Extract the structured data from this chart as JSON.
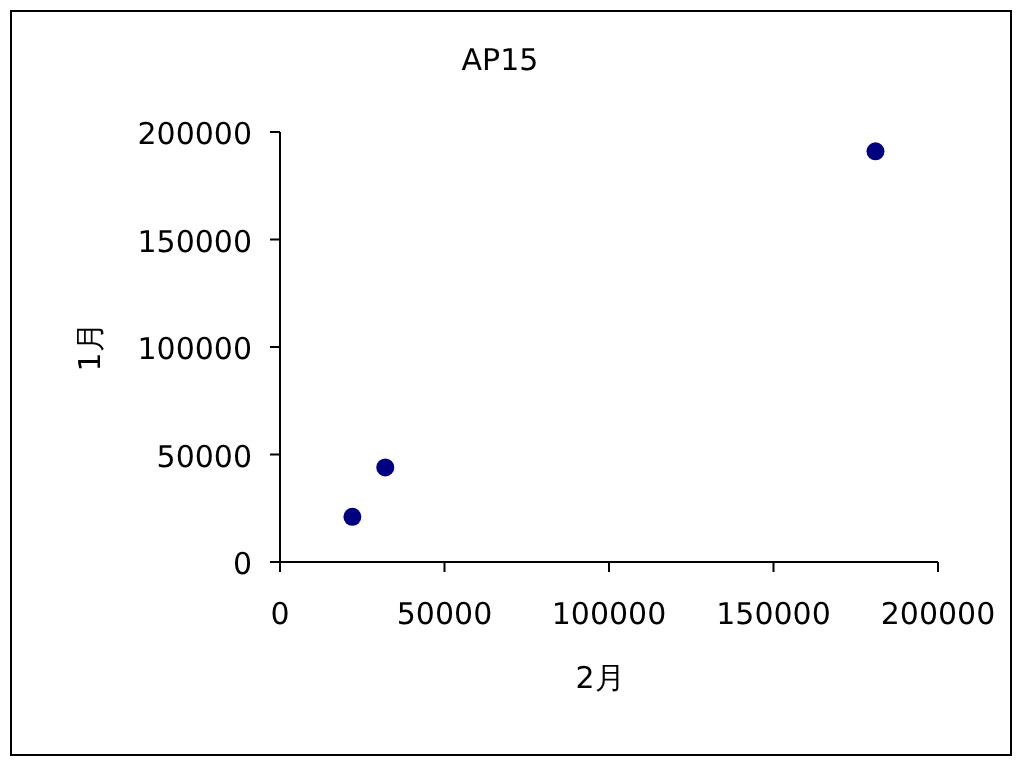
{
  "chart_data": {
    "type": "scatter",
    "title": "AP15",
    "xlabel": "2月",
    "ylabel": "1月",
    "x": [
      22000,
      32000,
      181000
    ],
    "series": [
      {
        "color": "#000080",
        "values": [
          21000,
          44000,
          191000
        ]
      }
    ],
    "xlim": [
      0,
      200000
    ],
    "xticks": [
      0,
      50000,
      100000,
      150000,
      200000
    ],
    "ylim": [
      0,
      200000
    ],
    "yticks": [
      0,
      50000,
      100000,
      150000,
      200000
    ],
    "marker": "circle",
    "grid": false
  }
}
